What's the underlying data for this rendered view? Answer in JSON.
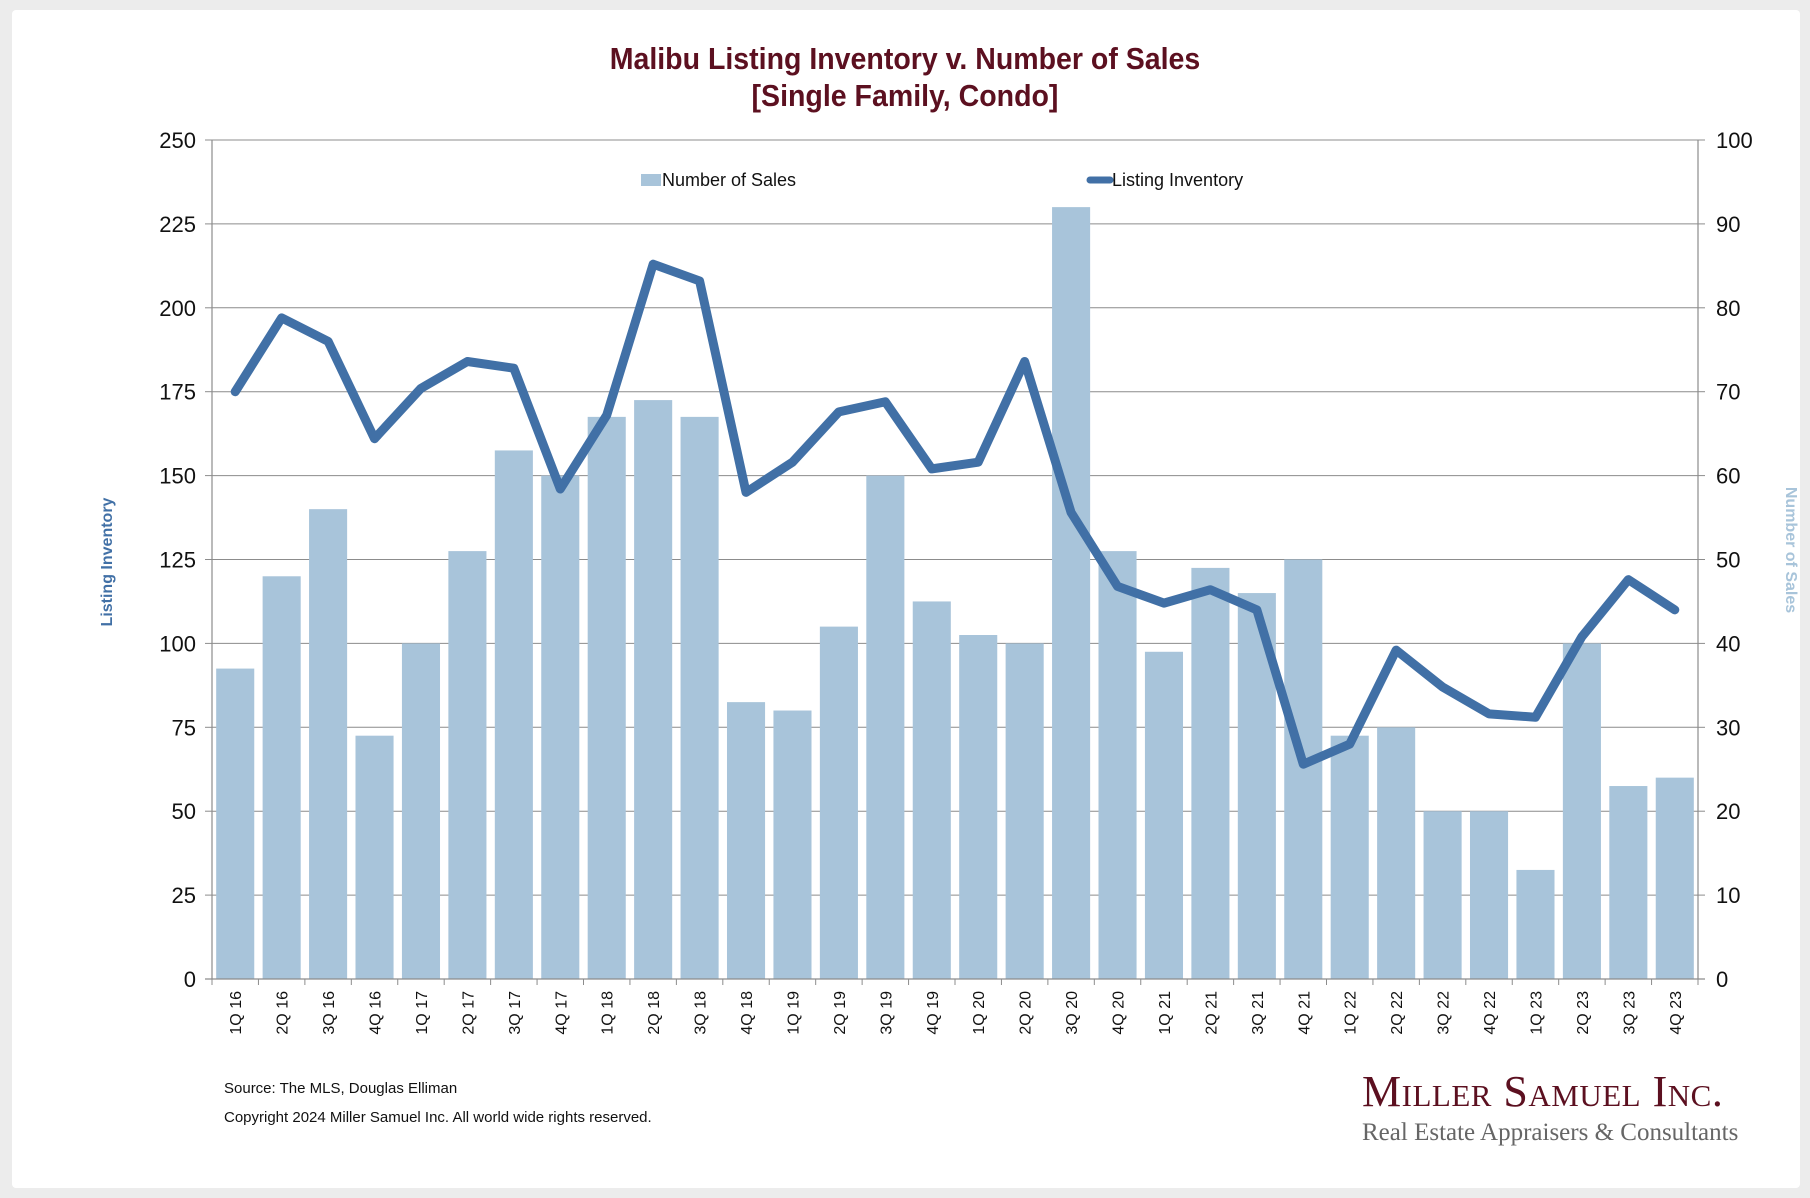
{
  "title_line1": "Malibu Listing Inventory v. Number of Sales",
  "title_line2": "[Single Family, Condo]",
  "footer": {
    "source": "Source: The MLS, Douglas Elliman",
    "copyright": "Copyright 2024 Miller Samuel Inc.  All world wide rights reserved."
  },
  "logo": {
    "name": "Miller Samuel Inc.",
    "tagline": "Real Estate Appraisers & Consultants"
  },
  "colors": {
    "title": "#5c1020",
    "bars": "#a8c4da",
    "line": "#4170a6",
    "left_axis_title": "#4170a6",
    "right_axis_title": "#a8c4da",
    "grid": "#8c8c8c"
  },
  "chart_data": {
    "type": "bar+line",
    "title": "Malibu Listing Inventory v. Number of Sales [Single Family, Condo]",
    "categories": [
      "1Q 16",
      "2Q 16",
      "3Q 16",
      "4Q 16",
      "1Q 17",
      "2Q 17",
      "3Q 17",
      "4Q 17",
      "1Q 18",
      "2Q 18",
      "3Q 18",
      "4Q 18",
      "1Q 19",
      "2Q 19",
      "3Q 19",
      "4Q 19",
      "1Q 20",
      "2Q 20",
      "3Q 20",
      "4Q 20",
      "1Q 21",
      "2Q 21",
      "3Q 21",
      "4Q 21",
      "1Q 22",
      "2Q 22",
      "3Q 22",
      "4Q 22",
      "1Q 23",
      "2Q 23",
      "3Q 23",
      "4Q 23"
    ],
    "series": [
      {
        "name": "Number of Sales",
        "type": "bar",
        "axis": "right",
        "values": [
          37,
          48,
          56,
          29,
          40,
          51,
          63,
          60,
          67,
          69,
          67,
          33,
          32,
          42,
          60,
          45,
          41,
          40,
          92,
          51,
          39,
          49,
          46,
          50,
          29,
          30,
          20,
          20,
          13,
          40,
          23,
          24
        ]
      },
      {
        "name": "Listing Inventory",
        "type": "line",
        "axis": "left",
        "values": [
          175,
          197,
          190,
          161,
          176,
          184,
          182,
          146,
          168,
          213,
          208,
          145,
          154,
          169,
          172,
          152,
          154,
          184,
          139,
          117,
          112,
          116,
          110,
          64,
          70,
          98,
          87,
          79,
          78,
          102,
          119,
          110
        ]
      }
    ],
    "left_axis": {
      "label": "Listing Inventory",
      "ylim": [
        0,
        250
      ],
      "ticks": [
        "0",
        "25",
        "50",
        "75",
        "100",
        "125",
        "150",
        "175",
        "200",
        "225",
        "250"
      ]
    },
    "right_axis": {
      "label": "Number of Sales",
      "ylim": [
        0,
        100
      ],
      "ticks": [
        "0",
        "10",
        "20",
        "30",
        "40",
        "50",
        "60",
        "70",
        "80",
        "90",
        "100"
      ]
    },
    "grid": true,
    "legend": {
      "placement": "top-center",
      "entries": [
        "Number of Sales",
        "Listing Inventory"
      ]
    }
  }
}
